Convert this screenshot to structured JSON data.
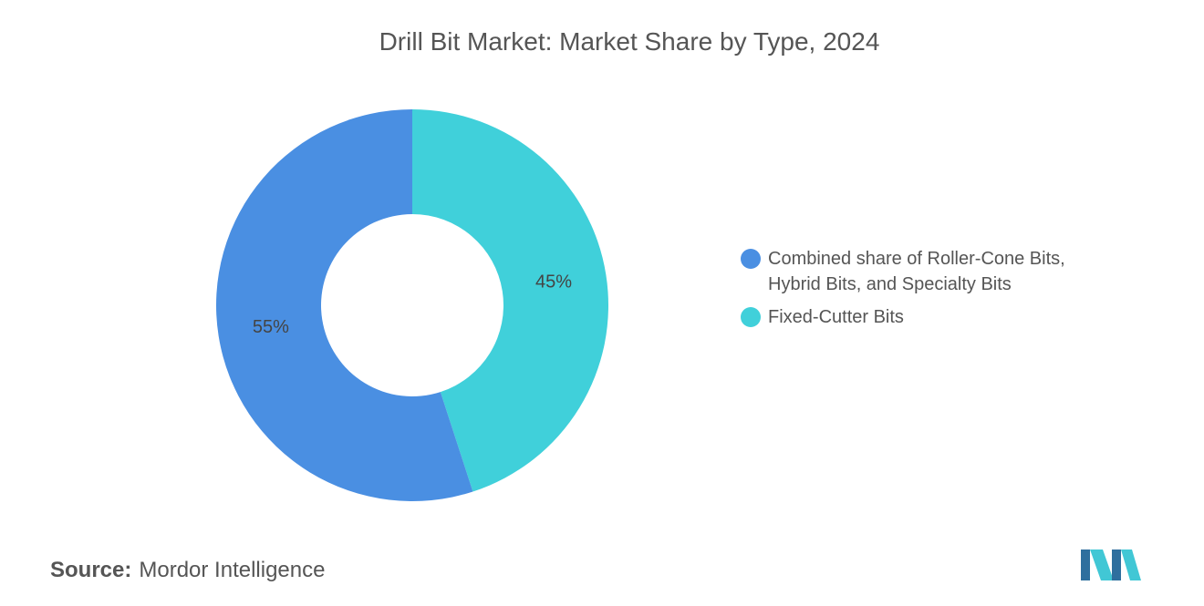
{
  "chart_data": {
    "type": "donut",
    "title": "Drill Bit Market: Market Share by Type, 2024",
    "categories": [
      "Combined share of Roller-Cone Bits, Hybrid Bits, and Specialty Bits",
      "Fixed-Cutter Bits"
    ],
    "values": [
      55,
      45
    ],
    "value_labels": [
      "55%",
      "45%"
    ],
    "colors": [
      "#4a8fe2",
      "#40d0da"
    ]
  },
  "footer": {
    "source_label": "Source:",
    "source": "Mordor Intelligence"
  }
}
